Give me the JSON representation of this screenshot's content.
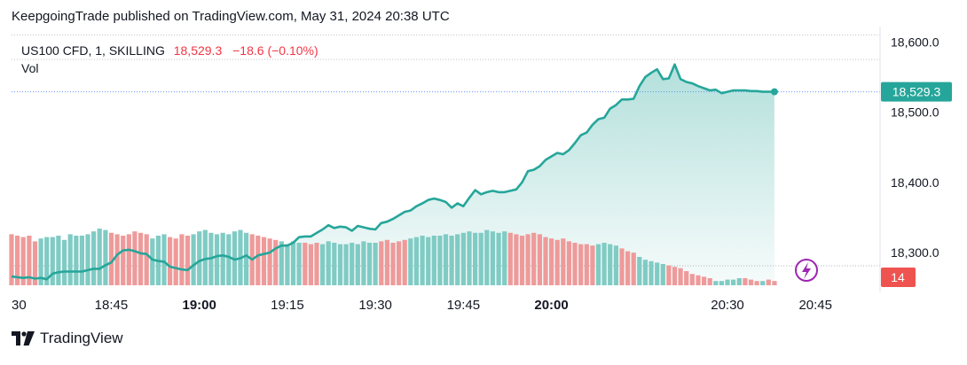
{
  "caption": "KeepgoingTrade published on TradingView.com, May 31, 2024 20:38 UTC",
  "legend": {
    "symbol": "US100 CFD, 1, SKILLING",
    "last": "18,529.3",
    "change": "−18.6 (−0.10%)",
    "volume_label": "Vol"
  },
  "badges": {
    "price": "18,529.3",
    "volume": "14"
  },
  "brand": {
    "name": "TradingView",
    "icon": "tradingview-logo-icon"
  },
  "lightning_icon": "lightning-bolt-icon",
  "colors": {
    "line": "#26a69a",
    "area_top": "#b2dfdb",
    "vol_up": "#80cbc4",
    "vol_down": "#ef9a9a",
    "price_badge": "#26a69a",
    "vol_badge": "#ef5350",
    "lightning": "#9c27b0"
  },
  "chart_data": {
    "type": "area",
    "x_ticks": [
      "30",
      "18:45",
      "19:00",
      "19:15",
      "19:30",
      "19:45",
      "20:00",
      "20:30",
      "20:45"
    ],
    "x_tick_minutes": [
      -15,
      0,
      15,
      30,
      45,
      60,
      75,
      105,
      120
    ],
    "x_bold": [
      "19:00",
      "20:00"
    ],
    "x_range_minutes": [
      -17,
      131
    ],
    "y_ticks": [
      "18,600.0",
      "18,500.0",
      "18,400.0",
      "18,300.0"
    ],
    "y_tick_values": [
      18600,
      18500,
      18400,
      18300
    ],
    "y_range": [
      18256,
      18613
    ],
    "points": [
      [
        -17,
        18266
      ],
      [
        -16,
        18265
      ],
      [
        -15,
        18264
      ],
      [
        -14,
        18265
      ],
      [
        -13,
        18263
      ],
      [
        -12,
        18264
      ],
      [
        -11,
        18262
      ],
      [
        -10,
        18270
      ],
      [
        -9,
        18272
      ],
      [
        -8,
        18273
      ],
      [
        -7,
        18273
      ],
      [
        -6,
        18273
      ],
      [
        -5,
        18273
      ],
      [
        -4,
        18275
      ],
      [
        -3,
        18277
      ],
      [
        -2,
        18277
      ],
      [
        -1,
        18282
      ],
      [
        0,
        18286
      ],
      [
        1,
        18297
      ],
      [
        2,
        18303
      ],
      [
        3,
        18304
      ],
      [
        4,
        18302
      ],
      [
        5,
        18299
      ],
      [
        6,
        18298
      ],
      [
        7,
        18290
      ],
      [
        8,
        18288
      ],
      [
        9,
        18287
      ],
      [
        10,
        18280
      ],
      [
        11,
        18278
      ],
      [
        12,
        18276
      ],
      [
        13,
        18275
      ],
      [
        14,
        18282
      ],
      [
        15,
        18288
      ],
      [
        16,
        18291
      ],
      [
        17,
        18292
      ],
      [
        18,
        18295
      ],
      [
        19,
        18296
      ],
      [
        20,
        18294
      ],
      [
        21,
        18290
      ],
      [
        22,
        18292
      ],
      [
        23,
        18296
      ],
      [
        24,
        18290
      ],
      [
        25,
        18296
      ],
      [
        26,
        18298
      ],
      [
        27,
        18300
      ],
      [
        28,
        18306
      ],
      [
        29,
        18310
      ],
      [
        30,
        18310
      ],
      [
        31,
        18314
      ],
      [
        32,
        18322
      ],
      [
        33,
        18323
      ],
      [
        34,
        18323
      ],
      [
        35,
        18328
      ],
      [
        36,
        18333
      ],
      [
        37,
        18339
      ],
      [
        38,
        18335
      ],
      [
        39,
        18337
      ],
      [
        40,
        18336
      ],
      [
        41,
        18331
      ],
      [
        42,
        18338
      ],
      [
        43,
        18336
      ],
      [
        44,
        18334
      ],
      [
        45,
        18333
      ],
      [
        46,
        18342
      ],
      [
        47,
        18344
      ],
      [
        48,
        18348
      ],
      [
        49,
        18353
      ],
      [
        50,
        18358
      ],
      [
        51,
        18360
      ],
      [
        52,
        18366
      ],
      [
        53,
        18370
      ],
      [
        54,
        18375
      ],
      [
        55,
        18377
      ],
      [
        56,
        18375
      ],
      [
        57,
        18372
      ],
      [
        58,
        18364
      ],
      [
        59,
        18370
      ],
      [
        60,
        18366
      ],
      [
        61,
        18378
      ],
      [
        62,
        18389
      ],
      [
        63,
        18383
      ],
      [
        64,
        18386
      ],
      [
        65,
        18388
      ],
      [
        66,
        18386
      ],
      [
        67,
        18386
      ],
      [
        68,
        18388
      ],
      [
        69,
        18390
      ],
      [
        70,
        18400
      ],
      [
        71,
        18416
      ],
      [
        72,
        18418
      ],
      [
        73,
        18423
      ],
      [
        74,
        18432
      ],
      [
        75,
        18437
      ],
      [
        76,
        18442
      ],
      [
        77,
        18440
      ],
      [
        78,
        18446
      ],
      [
        79,
        18456
      ],
      [
        80,
        18467
      ],
      [
        81,
        18471
      ],
      [
        82,
        18482
      ],
      [
        83,
        18490
      ],
      [
        84,
        18492
      ],
      [
        85,
        18505
      ],
      [
        86,
        18510
      ],
      [
        87,
        18518
      ],
      [
        88,
        18518
      ],
      [
        89,
        18519
      ],
      [
        90,
        18537
      ],
      [
        91,
        18550
      ],
      [
        92,
        18556
      ],
      [
        93,
        18561
      ],
      [
        94,
        18547
      ],
      [
        95,
        18548
      ],
      [
        96,
        18568
      ],
      [
        97,
        18547
      ],
      [
        98,
        18543
      ],
      [
        99,
        18541
      ],
      [
        100,
        18537
      ],
      [
        101,
        18534
      ],
      [
        102,
        18531
      ],
      [
        103,
        18532
      ],
      [
        104,
        18527
      ],
      [
        105,
        18529
      ],
      [
        106,
        18531
      ],
      [
        107,
        18531
      ],
      [
        108,
        18531
      ],
      [
        109,
        18530
      ],
      [
        110,
        18530
      ],
      [
        111,
        18529
      ],
      [
        112,
        18529
      ],
      [
        113,
        18529
      ]
    ],
    "volume": {
      "max": 100,
      "bars": [
        [
          -17,
          72,
          "down"
        ],
        [
          -16,
          70,
          "down"
        ],
        [
          -15,
          68,
          "down"
        ],
        [
          -14,
          70,
          "down"
        ],
        [
          -13,
          62,
          "down"
        ],
        [
          -12,
          66,
          "up"
        ],
        [
          -11,
          68,
          "up"
        ],
        [
          -10,
          68,
          "up"
        ],
        [
          -9,
          70,
          "up"
        ],
        [
          -8,
          64,
          "up"
        ],
        [
          -7,
          72,
          "up"
        ],
        [
          -6,
          70,
          "up"
        ],
        [
          -5,
          70,
          "up"
        ],
        [
          -4,
          72,
          "up"
        ],
        [
          -3,
          76,
          "up"
        ],
        [
          -2,
          80,
          "up"
        ],
        [
          -1,
          78,
          "up"
        ],
        [
          0,
          74,
          "down"
        ],
        [
          1,
          72,
          "down"
        ],
        [
          2,
          70,
          "down"
        ],
        [
          3,
          72,
          "down"
        ],
        [
          4,
          76,
          "down"
        ],
        [
          5,
          74,
          "down"
        ],
        [
          6,
          72,
          "down"
        ],
        [
          7,
          66,
          "up"
        ],
        [
          8,
          70,
          "up"
        ],
        [
          9,
          72,
          "up"
        ],
        [
          10,
          68,
          "down"
        ],
        [
          11,
          66,
          "down"
        ],
        [
          12,
          72,
          "down"
        ],
        [
          13,
          70,
          "down"
        ],
        [
          14,
          72,
          "up"
        ],
        [
          15,
          76,
          "up"
        ],
        [
          16,
          78,
          "up"
        ],
        [
          17,
          74,
          "up"
        ],
        [
          18,
          72,
          "up"
        ],
        [
          19,
          74,
          "up"
        ],
        [
          20,
          72,
          "up"
        ],
        [
          21,
          76,
          "up"
        ],
        [
          22,
          78,
          "up"
        ],
        [
          23,
          74,
          "up"
        ],
        [
          24,
          72,
          "down"
        ],
        [
          25,
          70,
          "down"
        ],
        [
          26,
          68,
          "down"
        ],
        [
          27,
          66,
          "down"
        ],
        [
          28,
          64,
          "down"
        ],
        [
          29,
          62,
          "up"
        ],
        [
          30,
          58,
          "up"
        ],
        [
          31,
          62,
          "up"
        ],
        [
          32,
          60,
          "up"
        ],
        [
          33,
          60,
          "down"
        ],
        [
          34,
          58,
          "down"
        ],
        [
          35,
          60,
          "down"
        ],
        [
          36,
          58,
          "up"
        ],
        [
          37,
          62,
          "up"
        ],
        [
          38,
          60,
          "up"
        ],
        [
          39,
          58,
          "up"
        ],
        [
          40,
          58,
          "up"
        ],
        [
          41,
          60,
          "up"
        ],
        [
          42,
          58,
          "up"
        ],
        [
          43,
          62,
          "up"
        ],
        [
          44,
          60,
          "up"
        ],
        [
          45,
          60,
          "up"
        ],
        [
          46,
          62,
          "down"
        ],
        [
          47,
          64,
          "down"
        ],
        [
          48,
          60,
          "down"
        ],
        [
          49,
          62,
          "down"
        ],
        [
          50,
          64,
          "down"
        ],
        [
          51,
          66,
          "up"
        ],
        [
          52,
          68,
          "up"
        ],
        [
          53,
          70,
          "up"
        ],
        [
          54,
          68,
          "up"
        ],
        [
          55,
          70,
          "up"
        ],
        [
          56,
          70,
          "up"
        ],
        [
          57,
          72,
          "up"
        ],
        [
          58,
          70,
          "up"
        ],
        [
          59,
          72,
          "up"
        ],
        [
          60,
          74,
          "up"
        ],
        [
          61,
          76,
          "up"
        ],
        [
          62,
          74,
          "up"
        ],
        [
          63,
          74,
          "up"
        ],
        [
          64,
          78,
          "up"
        ],
        [
          65,
          76,
          "up"
        ],
        [
          66,
          74,
          "up"
        ],
        [
          67,
          76,
          "up"
        ],
        [
          68,
          74,
          "down"
        ],
        [
          69,
          72,
          "down"
        ],
        [
          70,
          70,
          "down"
        ],
        [
          71,
          72,
          "down"
        ],
        [
          72,
          74,
          "down"
        ],
        [
          73,
          72,
          "down"
        ],
        [
          74,
          68,
          "down"
        ],
        [
          75,
          66,
          "down"
        ],
        [
          76,
          64,
          "down"
        ],
        [
          77,
          66,
          "down"
        ],
        [
          78,
          62,
          "down"
        ],
        [
          79,
          60,
          "down"
        ],
        [
          80,
          58,
          "down"
        ],
        [
          81,
          58,
          "down"
        ],
        [
          82,
          56,
          "down"
        ],
        [
          83,
          58,
          "up"
        ],
        [
          84,
          60,
          "up"
        ],
        [
          85,
          58,
          "up"
        ],
        [
          86,
          56,
          "up"
        ],
        [
          87,
          52,
          "down"
        ],
        [
          88,
          48,
          "down"
        ],
        [
          89,
          46,
          "down"
        ],
        [
          90,
          40,
          "up"
        ],
        [
          91,
          36,
          "up"
        ],
        [
          92,
          34,
          "up"
        ],
        [
          93,
          32,
          "up"
        ],
        [
          94,
          30,
          "up"
        ],
        [
          95,
          28,
          "down"
        ],
        [
          96,
          26,
          "down"
        ],
        [
          97,
          24,
          "down"
        ],
        [
          98,
          20,
          "down"
        ],
        [
          99,
          16,
          "down"
        ],
        [
          100,
          14,
          "down"
        ],
        [
          101,
          12,
          "down"
        ],
        [
          102,
          10,
          "down"
        ],
        [
          103,
          6,
          "up"
        ],
        [
          104,
          6,
          "up"
        ],
        [
          105,
          8,
          "up"
        ],
        [
          106,
          8,
          "up"
        ],
        [
          107,
          10,
          "up"
        ],
        [
          108,
          10,
          "down"
        ],
        [
          109,
          8,
          "down"
        ],
        [
          110,
          6,
          "down"
        ],
        [
          111,
          6,
          "up"
        ],
        [
          112,
          8,
          "down"
        ],
        [
          113,
          6,
          "down"
        ]
      ]
    },
    "grid": "horizontal-dotted-reference-lines"
  }
}
